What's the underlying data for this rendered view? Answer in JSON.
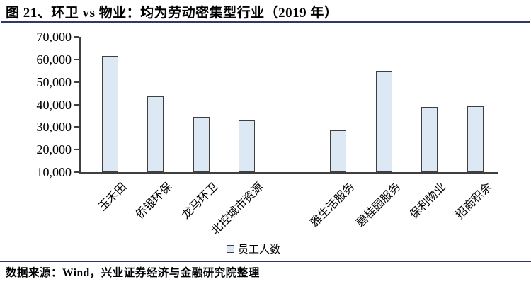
{
  "title": "图 21、环卫 vs 物业：均为劳动密集型行业（2019 年）",
  "footer": {
    "source_text": "数据来源：Wind，兴业证券经济与金融研究院整理"
  },
  "legend": {
    "label": "员工人数"
  },
  "colors": {
    "rule": "#32376B",
    "axis": "#3F3F3F",
    "bar_fill": "#DCE9F5",
    "bar_border": "#3F3F3F",
    "text": "#000000"
  },
  "chart_data": {
    "type": "bar",
    "title": "环卫 vs 物业：均为劳动密集型行业（2019 年）",
    "categories": [
      "玉禾田",
      "侨银环保",
      "龙马环卫",
      "北控城市资源",
      "雅生活服务",
      "碧桂园服务",
      "保利物业",
      "招商积余"
    ],
    "values": [
      61500,
      44000,
      34500,
      33400,
      28800,
      55000,
      38900,
      39500
    ],
    "series_name": "员工人数",
    "xlabel": "",
    "ylabel": "",
    "ylim": [
      10000,
      70000
    ],
    "yticks": [
      {
        "value": 70000,
        "label": "70,000"
      },
      {
        "value": 60000,
        "label": "60,000"
      },
      {
        "value": 50000,
        "label": "50,000"
      },
      {
        "value": 40000,
        "label": "40,000"
      },
      {
        "value": 30000,
        "label": "30,000"
      },
      {
        "value": 20000,
        "label": "20,000"
      },
      {
        "value": 10000,
        "label": "10,000"
      }
    ],
    "grid": false,
    "legend_position": "bottom",
    "gap_after_index": 3
  }
}
